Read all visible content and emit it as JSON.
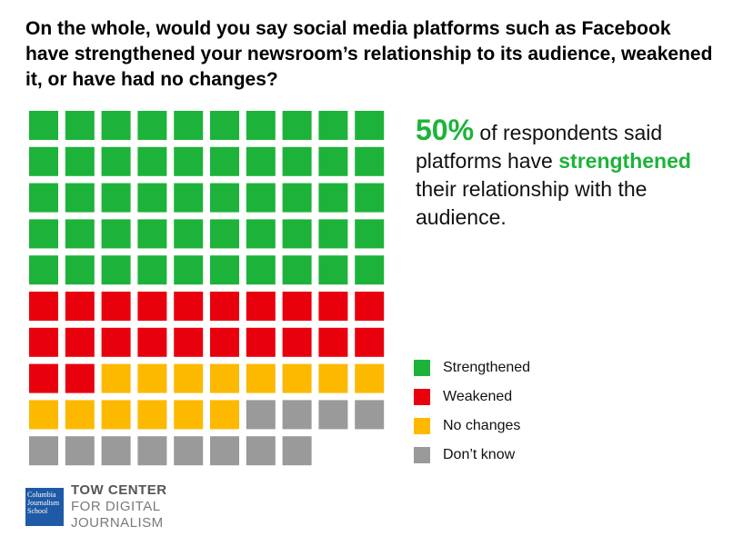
{
  "chart_data": {
    "type": "waffle",
    "title": "On the whole, would you say social media platforms such as Facebook have strengthened your newsroom’s relationship to its audience, weakened it, or have had no changes?",
    "series": [
      {
        "name": "Strengthened",
        "color": "#1db33a",
        "values": [
          50
        ]
      },
      {
        "name": "Weakened",
        "color": "#e8000d",
        "values": [
          22
        ]
      },
      {
        "name": "No changes",
        "color": "#fdb900",
        "values": [
          14
        ]
      },
      {
        "name": "Don’t know",
        "color": "#9a9a9a",
        "values": [
          12
        ]
      }
    ],
    "columns": 10,
    "callout": {
      "highlight": "50%",
      "text1": " of respondents said platforms have ",
      "emphasis": "strengthened",
      "text2": " their relationship with the audience."
    }
  },
  "logo": {
    "school": "Columbia Journalism School",
    "line1": "TOW CENTER",
    "line2": "FOR DIGITAL",
    "line3": "JOURNALISM"
  }
}
